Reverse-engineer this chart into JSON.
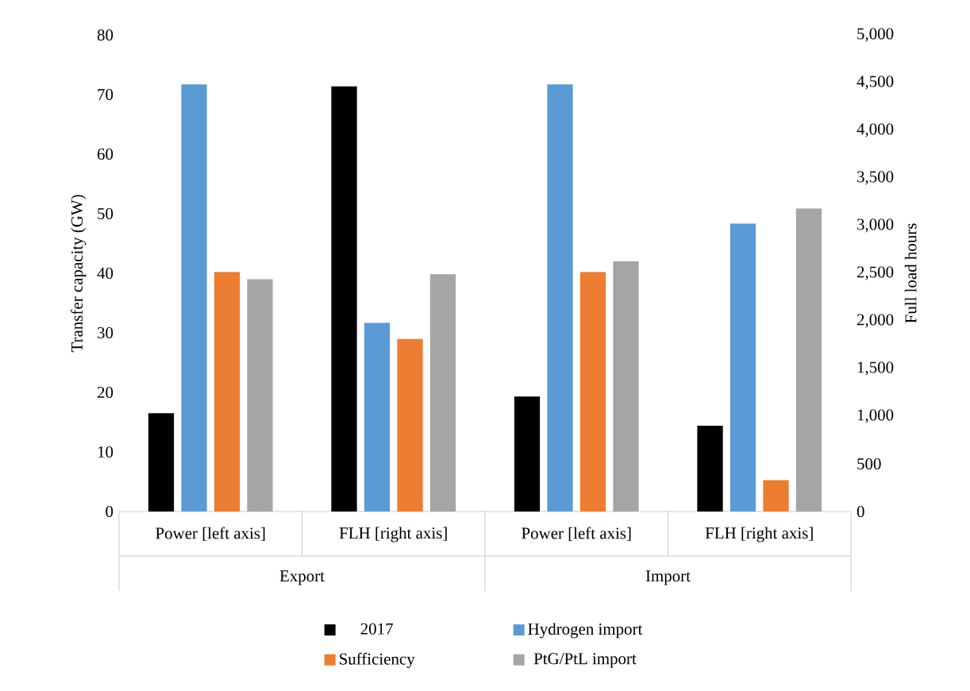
{
  "chart_data": {
    "type": "bar",
    "categories": [
      "Power [left axis]",
      "FLH [right axis]",
      "Power [left axis]",
      "FLH [right axis]"
    ],
    "annotations": [
      "Export",
      "Import"
    ],
    "ylabel": "Transfer capacity (GW)",
    "y2label": "Full load hours",
    "ylim": [
      0,
      80
    ],
    "yticks": [
      0,
      10,
      20,
      30,
      40,
      50,
      60,
      70,
      80
    ],
    "y2lim": [
      0,
      5000
    ],
    "y2ticks": [
      0,
      {
        "value": 500,
        "label": "500"
      },
      {
        "value": 1000,
        "label": "1,000"
      },
      {
        "value": 1500,
        "label": "1,500"
      },
      {
        "value": 2000,
        "label": "2,000"
      },
      {
        "value": 2500,
        "label": "2,500"
      },
      {
        "value": 3000,
        "label": "3,000"
      },
      {
        "value": 3500,
        "label": "3,500"
      },
      {
        "value": 4000,
        "label": "4,000"
      },
      {
        "value": 4500,
        "label": "4,500"
      },
      {
        "value": 5000,
        "label": "5,000"
      }
    ],
    "legend": "bottom",
    "series": [
      {
        "name": "2017",
        "color": "#000000",
        "values": [
          16.5,
          null,
          19.3,
          null
        ]
      },
      {
        "name": "Hydrogen import",
        "color": "#5b9bd5",
        "values": [
          71.7,
          null,
          71.7,
          null
        ]
      },
      {
        "name": "Sufficiency",
        "color": "#ed7d31",
        "values": [
          40.2,
          null,
          40.2,
          null
        ]
      },
      {
        "name": "PtG/PtL import",
        "color": "#a5a5a5",
        "values": [
          39,
          null,
          42,
          null
        ]
      },
      {
        "color": "#000000",
        "axis": "y2",
        "values": [
          null,
          4460,
          null,
          900
        ]
      },
      {
        "color": "#5b9bd5",
        "axis": "y2",
        "values": [
          null,
          1980,
          null,
          3020
        ]
      },
      {
        "color": "#ed7d31",
        "axis": "y2",
        "values": [
          null,
          1810,
          null,
          330
        ]
      },
      {
        "color": "#a5a5a5",
        "axis": "y2",
        "values": [
          null,
          2490,
          null,
          3180
        ]
      }
    ]
  }
}
